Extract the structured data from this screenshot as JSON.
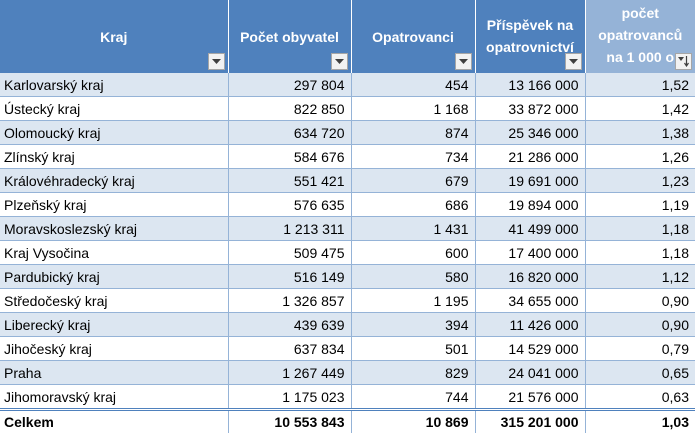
{
  "colors": {
    "header": "#4f81bd",
    "header_sorted": "#95b3d7",
    "band": "#dce6f1",
    "grid": "#95b3d7"
  },
  "header": {
    "kraj": "Kraj",
    "obyvatele": "Počet obyvatel",
    "opatrovanci": "Opatrovanci",
    "prispevek_1": "Příspěvek na",
    "prispevek_2": "opatrovnictví",
    "pocet_1": "počet",
    "pocet_2": "opatrovanců",
    "pocet_3": "na 1 000 o"
  },
  "rows": [
    {
      "kraj": "Karlovarský kraj",
      "obyvatele": "297 804",
      "opatrovanci": "454",
      "prispevek": "13 166 000",
      "pocet": "1,52"
    },
    {
      "kraj": "Ústecký kraj",
      "obyvatele": "822 850",
      "opatrovanci": "1 168",
      "prispevek": "33 872 000",
      "pocet": "1,42"
    },
    {
      "kraj": "Olomoucký kraj",
      "obyvatele": "634 720",
      "opatrovanci": "874",
      "prispevek": "25 346 000",
      "pocet": "1,38"
    },
    {
      "kraj": "Zlínský kraj",
      "obyvatele": "584 676",
      "opatrovanci": "734",
      "prispevek": "21 286 000",
      "pocet": "1,26"
    },
    {
      "kraj": "Královéhradecký kraj",
      "obyvatele": "551 421",
      "opatrovanci": "679",
      "prispevek": "19 691 000",
      "pocet": "1,23"
    },
    {
      "kraj": "Plzeňský kraj",
      "obyvatele": "576 635",
      "opatrovanci": "686",
      "prispevek": "19 894 000",
      "pocet": "1,19"
    },
    {
      "kraj": "Moravskoslezský kraj",
      "obyvatele": "1 213 311",
      "opatrovanci": "1 431",
      "prispevek": "41 499 000",
      "pocet": "1,18"
    },
    {
      "kraj": "Kraj Vysočina",
      "obyvatele": "509 475",
      "opatrovanci": "600",
      "prispevek": "17 400 000",
      "pocet": "1,18"
    },
    {
      "kraj": "Pardubický kraj",
      "obyvatele": "516 149",
      "opatrovanci": "580",
      "prispevek": "16 820 000",
      "pocet": "1,12"
    },
    {
      "kraj": "Středočeský kraj",
      "obyvatele": "1 326 857",
      "opatrovanci": "1 195",
      "prispevek": "34 655 000",
      "pocet": "0,90"
    },
    {
      "kraj": "Liberecký kraj",
      "obyvatele": "439 639",
      "opatrovanci": "394",
      "prispevek": "11 426 000",
      "pocet": "0,90"
    },
    {
      "kraj": "Jihočeský kraj",
      "obyvatele": "637 834",
      "opatrovanci": "501",
      "prispevek": "14 529 000",
      "pocet": "0,79"
    },
    {
      "kraj": "Praha",
      "obyvatele": "1 267 449",
      "opatrovanci": "829",
      "prispevek": "24 041 000",
      "pocet": "0,65"
    },
    {
      "kraj": "Jihomoravský kraj",
      "obyvatele": "1 175 023",
      "opatrovanci": "744",
      "prispevek": "21 576 000",
      "pocet": "0,63"
    }
  ],
  "total": {
    "kraj": "Celkem",
    "obyvatele": "10 553 843",
    "opatrovanci": "10 869",
    "prispevek": "315 201 000",
    "pocet": "1,03"
  }
}
